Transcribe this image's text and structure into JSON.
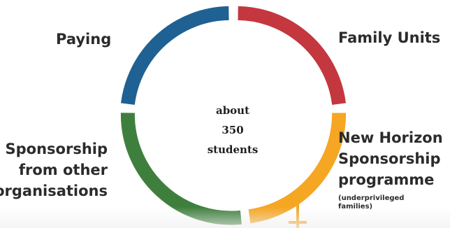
{
  "center": {
    "line1": "about",
    "line2": "350 students"
  },
  "segments": [
    {
      "key": "paying",
      "label_lines": [
        "Paying"
      ],
      "color": "#1f6193"
    },
    {
      "key": "family",
      "label_lines": [
        "Family Units"
      ],
      "color": "#c4373f"
    },
    {
      "key": "newhorizon",
      "label_lines": [
        "New Horizon",
        "Sponsorship",
        "programme"
      ],
      "note": "(underprivileged families)",
      "color": "#f5a623"
    },
    {
      "key": "sponsor",
      "label_lines": [
        "Sponsorship",
        "from other",
        "organisations"
      ],
      "color": "#3f7f3e"
    }
  ],
  "arrow_color": "#f5a623"
}
